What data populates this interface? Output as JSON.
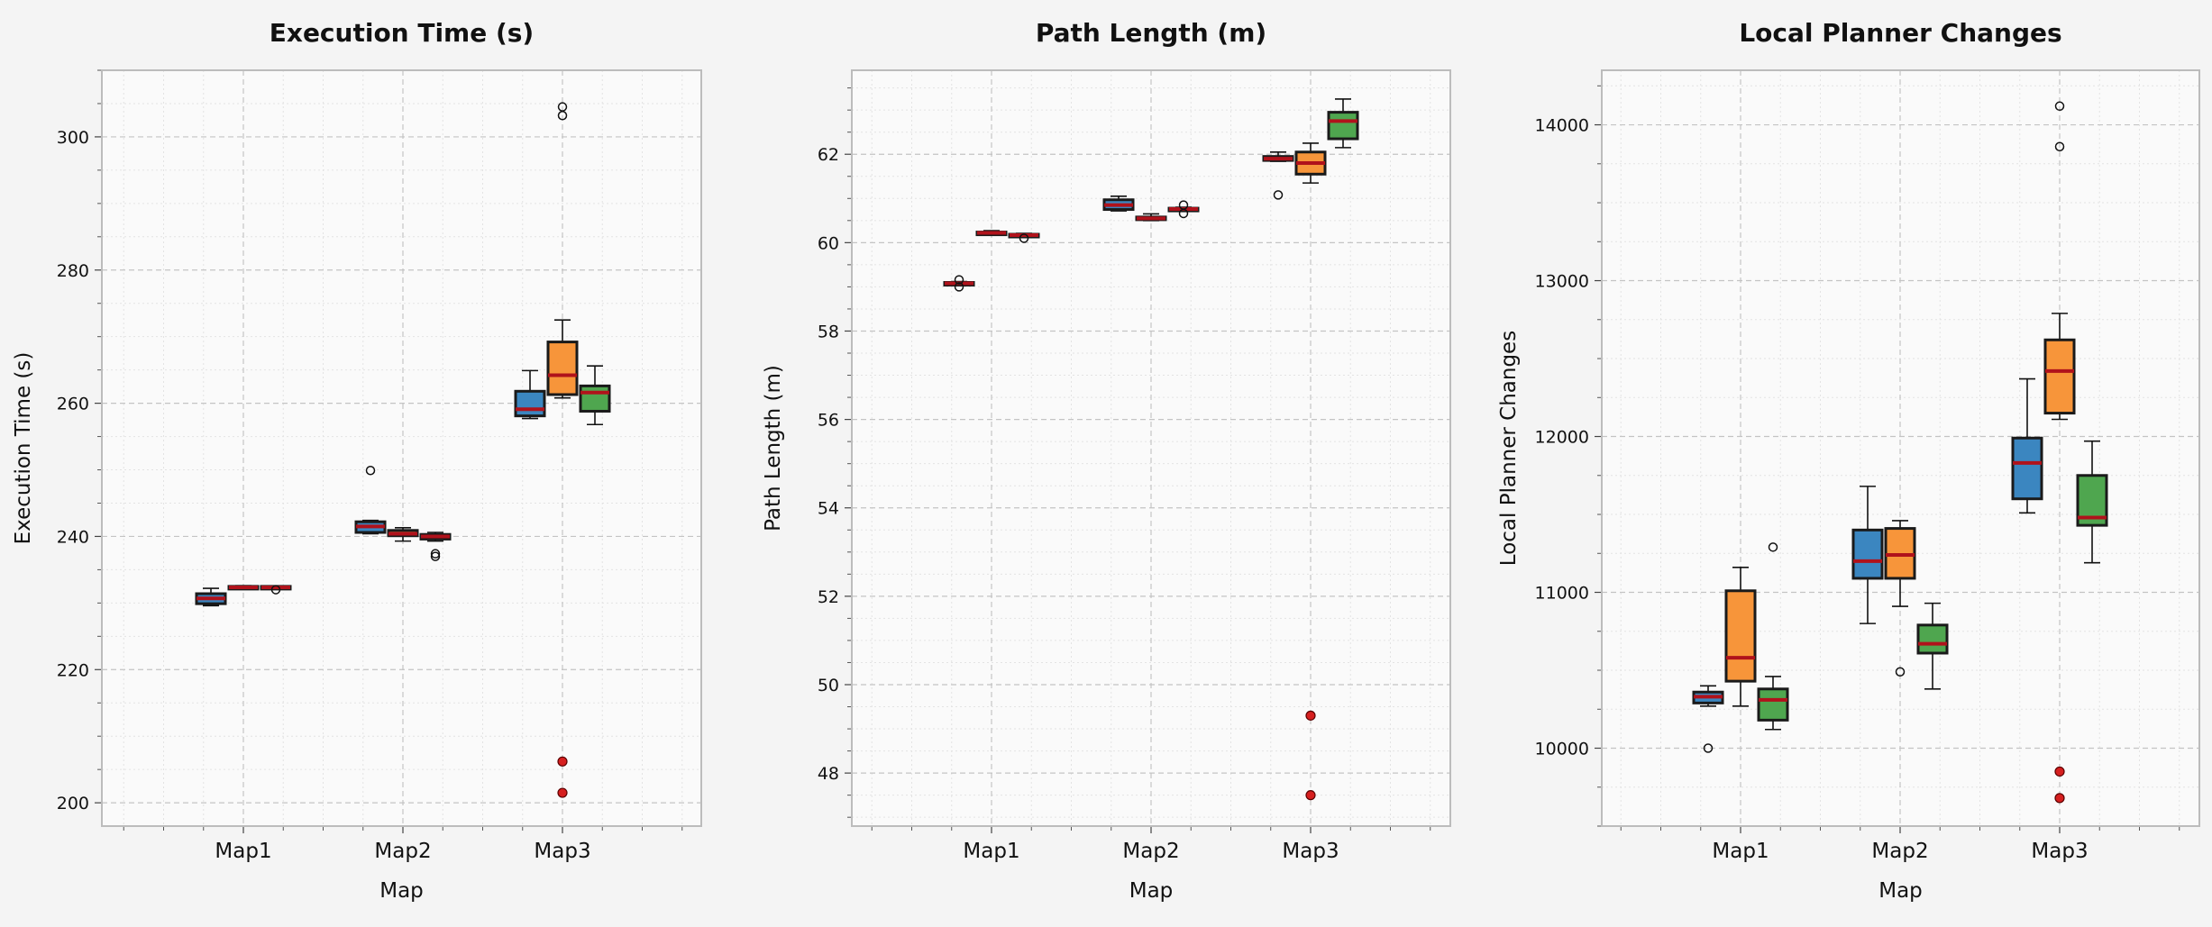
{
  "chart_data": [
    {
      "type": "box",
      "title": "Execution Time (s)",
      "xlabel": "Map",
      "ylabel": "Execution Time (s)",
      "categories": [
        "Map1",
        "Map2",
        "Map3"
      ],
      "ylim": [
        196.5,
        310
      ],
      "yticks": [
        200,
        220,
        240,
        260,
        280,
        300
      ],
      "grid": true,
      "series": [
        {
          "color": "#3b86c0",
          "boxes": [
            {
              "whislo": 229.6,
              "q1": 229.9,
              "med": 230.7,
              "q3": 231.4,
              "whishi": 232.2,
              "fliers_black": [],
              "fliers_red": []
            },
            {
              "whislo": 240.4,
              "q1": 240.6,
              "med": 241.5,
              "q3": 242.2,
              "whishi": 242.4,
              "fliers_black": [
                249.9
              ],
              "fliers_red": []
            },
            {
              "whislo": 257.7,
              "q1": 258.1,
              "med": 259.1,
              "q3": 261.8,
              "whishi": 264.9,
              "fliers_black": [],
              "fliers_red": []
            }
          ]
        },
        {
          "color": "#f7953a",
          "boxes": [
            {
              "whislo": 232.1,
              "q1": 232.2,
              "med": 232.35,
              "q3": 232.5,
              "whishi": 232.6,
              "fliers_black": [],
              "fliers_red": []
            },
            {
              "whislo": 239.3,
              "q1": 240.1,
              "med": 240.4,
              "q3": 240.9,
              "whishi": 241.3,
              "fliers_black": [],
              "fliers_red": []
            },
            {
              "whislo": 260.8,
              "q1": 261.3,
              "med": 264.2,
              "q3": 269.2,
              "whishi": 272.5,
              "fliers_black": [
                303.2,
                304.5
              ],
              "fliers_red": [
                206.2,
                201.5
              ]
            }
          ]
        },
        {
          "color": "#4fa64f",
          "boxes": [
            {
              "whislo": 232.2,
              "q1": 232.25,
              "med": 232.35,
              "q3": 232.5,
              "whishi": 232.55,
              "fliers_black": [
                232.0
              ],
              "fliers_red": []
            },
            {
              "whislo": 239.3,
              "q1": 239.6,
              "med": 240.0,
              "q3": 240.3,
              "whishi": 240.6,
              "fliers_black": [
                237.0,
                237.4
              ],
              "fliers_red": []
            },
            {
              "whislo": 256.8,
              "q1": 258.8,
              "med": 261.6,
              "q3": 262.6,
              "whishi": 265.6,
              "fliers_black": [],
              "fliers_red": []
            }
          ]
        }
      ]
    },
    {
      "type": "box",
      "title": "Path Length (m)",
      "xlabel": "Map",
      "ylabel": "Path Length (m)",
      "categories": [
        "Map1",
        "Map2",
        "Map3"
      ],
      "ylim": [
        46.8,
        63.9
      ],
      "yticks": [
        48,
        50,
        52,
        54,
        56,
        58,
        60,
        62
      ],
      "grid": true,
      "series": [
        {
          "color": "#3b86c0",
          "boxes": [
            {
              "whislo": 59.05,
              "q1": 59.06,
              "med": 59.08,
              "q3": 59.1,
              "whishi": 59.12,
              "fliers_black": [
                59.0,
                59.16
              ],
              "fliers_red": []
            },
            {
              "whislo": 60.72,
              "q1": 60.75,
              "med": 60.85,
              "q3": 60.97,
              "whishi": 61.05,
              "fliers_black": [],
              "fliers_red": []
            },
            {
              "whislo": 61.84,
              "q1": 61.86,
              "med": 61.9,
              "q3": 61.95,
              "whishi": 62.05,
              "fliers_black": [
                61.08
              ],
              "fliers_red": []
            }
          ]
        },
        {
          "color": "#f7953a",
          "boxes": [
            {
              "whislo": 60.18,
              "q1": 60.2,
              "med": 60.22,
              "q3": 60.24,
              "whishi": 60.27,
              "fliers_black": [],
              "fliers_red": []
            },
            {
              "whislo": 60.5,
              "q1": 60.52,
              "med": 60.55,
              "q3": 60.58,
              "whishi": 60.65,
              "fliers_black": [],
              "fliers_red": []
            },
            {
              "whislo": 61.35,
              "q1": 61.55,
              "med": 61.8,
              "q3": 62.05,
              "whishi": 62.25,
              "fliers_black": [],
              "fliers_red": [
                49.3,
                47.5
              ]
            }
          ]
        },
        {
          "color": "#4fa64f",
          "boxes": [
            {
              "whislo": 60.13,
              "q1": 60.15,
              "med": 60.17,
              "q3": 60.19,
              "whishi": 60.21,
              "fliers_black": [
                60.1
              ],
              "fliers_red": []
            },
            {
              "whislo": 60.72,
              "q1": 60.74,
              "med": 60.76,
              "q3": 60.78,
              "whishi": 60.8,
              "fliers_black": [
                60.66,
                60.85
              ],
              "fliers_red": []
            },
            {
              "whislo": 62.15,
              "q1": 62.35,
              "med": 62.75,
              "q3": 62.95,
              "whishi": 63.25,
              "fliers_black": [],
              "fliers_red": []
            }
          ]
        }
      ]
    },
    {
      "type": "box",
      "title": "Local Planner Changes",
      "xlabel": "Map",
      "ylabel": "Local Planner Changes",
      "categories": [
        "Map1",
        "Map2",
        "Map3"
      ],
      "ylim": [
        9500,
        14350
      ],
      "yticks": [
        10000,
        11000,
        12000,
        13000,
        14000
      ],
      "grid": true,
      "series": [
        {
          "color": "#3b86c0",
          "boxes": [
            {
              "whislo": 10270,
              "q1": 10290,
              "med": 10330,
              "q3": 10360,
              "whishi": 10400,
              "fliers_black": [
                10000
              ],
              "fliers_red": []
            },
            {
              "whislo": 10800,
              "q1": 11090,
              "med": 11200,
              "q3": 11400,
              "whishi": 11680,
              "fliers_black": [],
              "fliers_red": []
            },
            {
              "whislo": 11510,
              "q1": 11600,
              "med": 11830,
              "q3": 11990,
              "whishi": 12370,
              "fliers_black": [],
              "fliers_red": []
            }
          ]
        },
        {
          "color": "#f7953a",
          "boxes": [
            {
              "whislo": 10270,
              "q1": 10430,
              "med": 10580,
              "q3": 11010,
              "whishi": 11160,
              "fliers_black": [],
              "fliers_red": []
            },
            {
              "whislo": 10910,
              "q1": 11090,
              "med": 11240,
              "q3": 11410,
              "whishi": 11460,
              "fliers_black": [
                10490
              ],
              "fliers_red": []
            },
            {
              "whislo": 12110,
              "q1": 12150,
              "med": 12420,
              "q3": 12620,
              "whishi": 12790,
              "fliers_black": [
                13860,
                14120
              ],
              "fliers_red": [
                9850,
                9680
              ]
            }
          ]
        },
        {
          "color": "#4fa64f",
          "boxes": [
            {
              "whislo": 10120,
              "q1": 10180,
              "med": 10310,
              "q3": 10380,
              "whishi": 10460,
              "fliers_black": [
                11290
              ],
              "fliers_red": []
            },
            {
              "whislo": 10380,
              "q1": 10610,
              "med": 10670,
              "q3": 10790,
              "whishi": 10930,
              "fliers_black": [],
              "fliers_red": []
            },
            {
              "whislo": 11190,
              "q1": 11430,
              "med": 11480,
              "q3": 11750,
              "whishi": 11970,
              "fliers_black": [],
              "fliers_red": []
            }
          ]
        }
      ]
    }
  ]
}
